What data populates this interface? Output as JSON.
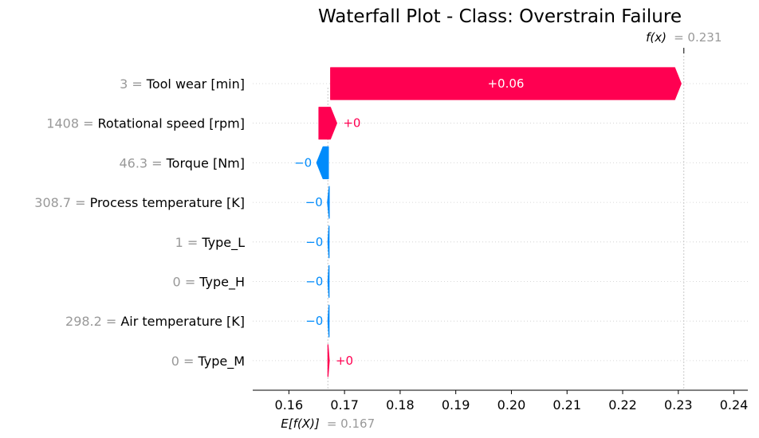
{
  "chart_data": {
    "type": "waterfall",
    "title": "Waterfall Plot - Class: Overstrain Failure",
    "xlim": [
      0.1535,
      0.2425
    ],
    "xticks": [
      0.16,
      0.17,
      0.18,
      0.19,
      0.2,
      0.21,
      0.22,
      0.23,
      0.24
    ],
    "xtick_labels": [
      "0.16",
      "0.17",
      "0.18",
      "0.19",
      "0.20",
      "0.21",
      "0.22",
      "0.23",
      "0.24"
    ],
    "base_value": 0.167,
    "base_label_math": "E[f(X)]",
    "base_value_text": "= 0.167",
    "output_value": 0.231,
    "output_label_math": "f(x)",
    "output_value_text": "= 0.231",
    "features": [
      {
        "value_text": "3 =",
        "name": "Tool wear [min]",
        "start": 0.1675,
        "end": 0.2305,
        "label": "+0.06",
        "label_inside": true
      },
      {
        "value_text": "1408 =",
        "name": "Rotational speed [rpm]",
        "start": 0.1654,
        "end": 0.1686,
        "label": "+0",
        "label_inside": false
      },
      {
        "value_text": "46.3 =",
        "name": "Torque [Nm]",
        "start": 0.1671,
        "end": 0.165,
        "label": "−0",
        "label_inside": false
      },
      {
        "value_text": "308.7 =",
        "name": "Process temperature [K]",
        "start": 0.16725,
        "end": 0.16695,
        "label": "−0",
        "label_inside": false
      },
      {
        "value_text": "1 =",
        "name": "Type_L",
        "start": 0.16722,
        "end": 0.16702,
        "label": "−0",
        "label_inside": false
      },
      {
        "value_text": "0 =",
        "name": "Type_H",
        "start": 0.16722,
        "end": 0.16702,
        "label": "−0",
        "label_inside": false
      },
      {
        "value_text": "298.2 =",
        "name": "Air temperature [K]",
        "start": 0.16722,
        "end": 0.16702,
        "label": "−0",
        "label_inside": false
      },
      {
        "value_text": "0 =",
        "name": "Type_M",
        "start": 0.16702,
        "end": 0.16725,
        "label": "+0",
        "label_inside": false
      }
    ]
  },
  "colors": {
    "positive": "#ff0051",
    "negative": "#008bfb",
    "muted": "#999999",
    "grid": "#cccccc"
  }
}
